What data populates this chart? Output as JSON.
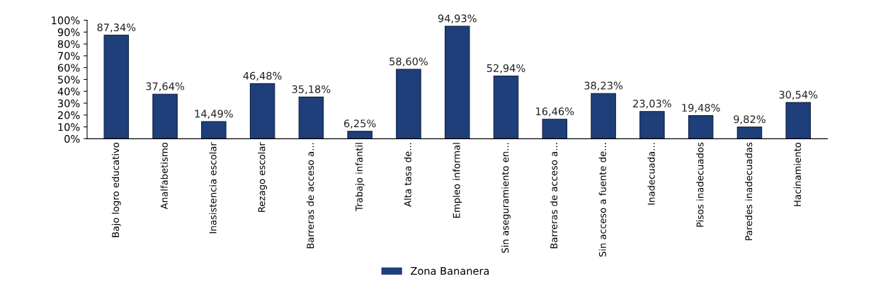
{
  "chart_data": {
    "type": "bar",
    "categories": [
      "Bajo logro educativo",
      "Analfabetismo",
      "Inasistencia escolar",
      "Rezago escolar",
      "Barreras de acceso a...",
      "Trabajo infantil",
      "Alta tasa de...",
      "Empleo informal",
      "Sin aseguramiento en...",
      "Barreras de acceso a...",
      "Sin acceso a fuente de...",
      "Inadecuada...",
      "Pisos inadecuados",
      "Paredes inadecuadas",
      "Hacinamiento"
    ],
    "series": [
      {
        "name": "Zona Bananera",
        "color": "#1f3f7a",
        "values": [
          87.34,
          37.64,
          14.49,
          46.48,
          35.18,
          6.25,
          58.6,
          94.93,
          52.94,
          16.46,
          38.23,
          23.03,
          19.48,
          9.82,
          30.54
        ],
        "value_labels": [
          "87,34%",
          "37,64%",
          "14,49%",
          "46,48%",
          "35,18%",
          "6,25%",
          "58,60%",
          "94,93%",
          "52,94%",
          "16,46%",
          "38,23%",
          "23,03%",
          "19,48%",
          "9,82%",
          "30,54%"
        ]
      }
    ],
    "ylim": [
      0,
      100
    ],
    "yticks": [
      {
        "value": 0,
        "label": "0%"
      },
      {
        "value": 10,
        "label": "10%"
      },
      {
        "value": 20,
        "label": "20%"
      },
      {
        "value": 30,
        "label": "30%"
      },
      {
        "value": 40,
        "label": "40%"
      },
      {
        "value": 50,
        "label": "50%"
      },
      {
        "value": 60,
        "label": "60%"
      },
      {
        "value": 70,
        "label": "70%"
      },
      {
        "value": 80,
        "label": "80%"
      },
      {
        "value": 90,
        "label": "90%"
      },
      {
        "value": 100,
        "label": "100%"
      }
    ],
    "grid": false,
    "legend": "bottom"
  }
}
